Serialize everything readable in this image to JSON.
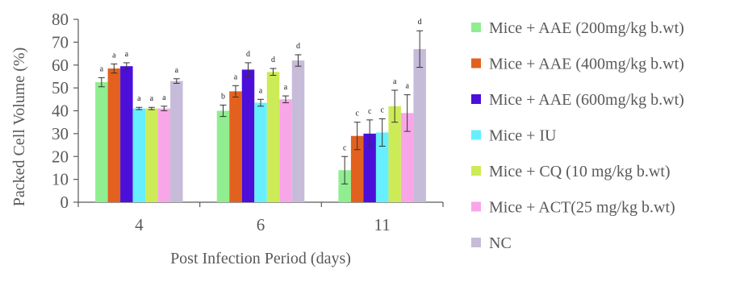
{
  "chart_data": {
    "type": "bar",
    "title": "",
    "xlabel": "Post Infection Period (days)",
    "ylabel": "Packed Cell Volume (%)",
    "ylim": [
      0,
      80
    ],
    "yticks": [
      0,
      10,
      20,
      30,
      40,
      50,
      60,
      70,
      80
    ],
    "categories": [
      "4",
      "6",
      "11"
    ],
    "legend_position": "right",
    "grid": false,
    "series": [
      {
        "name": "Mice + AAE (200mg/kg b.wt)",
        "color": "#90ee90",
        "values": [
          52.5,
          40,
          14
        ],
        "errors": [
          2,
          2.5,
          6
        ],
        "labels": [
          "a",
          "b",
          "c"
        ]
      },
      {
        "name": "Mice + AAE (400mg/kg b.wt)",
        "color": "#e2611f",
        "values": [
          58.5,
          48.5,
          29
        ],
        "errors": [
          2,
          2.5,
          6
        ],
        "labels": [
          "a",
          "a",
          "c"
        ]
      },
      {
        "name": "Mice + AAE (600mg/kg b.wt)",
        "color": "#4b0fd9",
        "values": [
          59.5,
          58,
          30
        ],
        "errors": [
          1.5,
          3,
          6
        ],
        "labels": [
          "a",
          "d",
          "c"
        ]
      },
      {
        "name": "Mice + IU",
        "color": "#66efff",
        "values": [
          41,
          43.5,
          30.5
        ],
        "errors": [
          0.5,
          1.5,
          6
        ],
        "labels": [
          "a",
          "a",
          "c"
        ]
      },
      {
        "name": "Mice + CQ (10 mg/kg b.wt)",
        "color": "#cdeb57",
        "values": [
          41,
          57,
          42
        ],
        "errors": [
          0.5,
          1.5,
          7
        ],
        "labels": [
          "a",
          "d",
          "a"
        ]
      },
      {
        "name": "Mice + ACT(25 mg/kg b.wt)",
        "color": "#f8a6e8",
        "values": [
          41,
          45,
          39
        ],
        "errors": [
          1,
          1.5,
          8
        ],
        "labels": [
          "a",
          "a",
          "a"
        ]
      },
      {
        "name": "NC",
        "color": "#c6bbd8",
        "values": [
          53,
          62,
          67
        ],
        "errors": [
          1,
          2.5,
          8
        ],
        "labels": [
          "a",
          "d",
          "d"
        ]
      }
    ]
  }
}
